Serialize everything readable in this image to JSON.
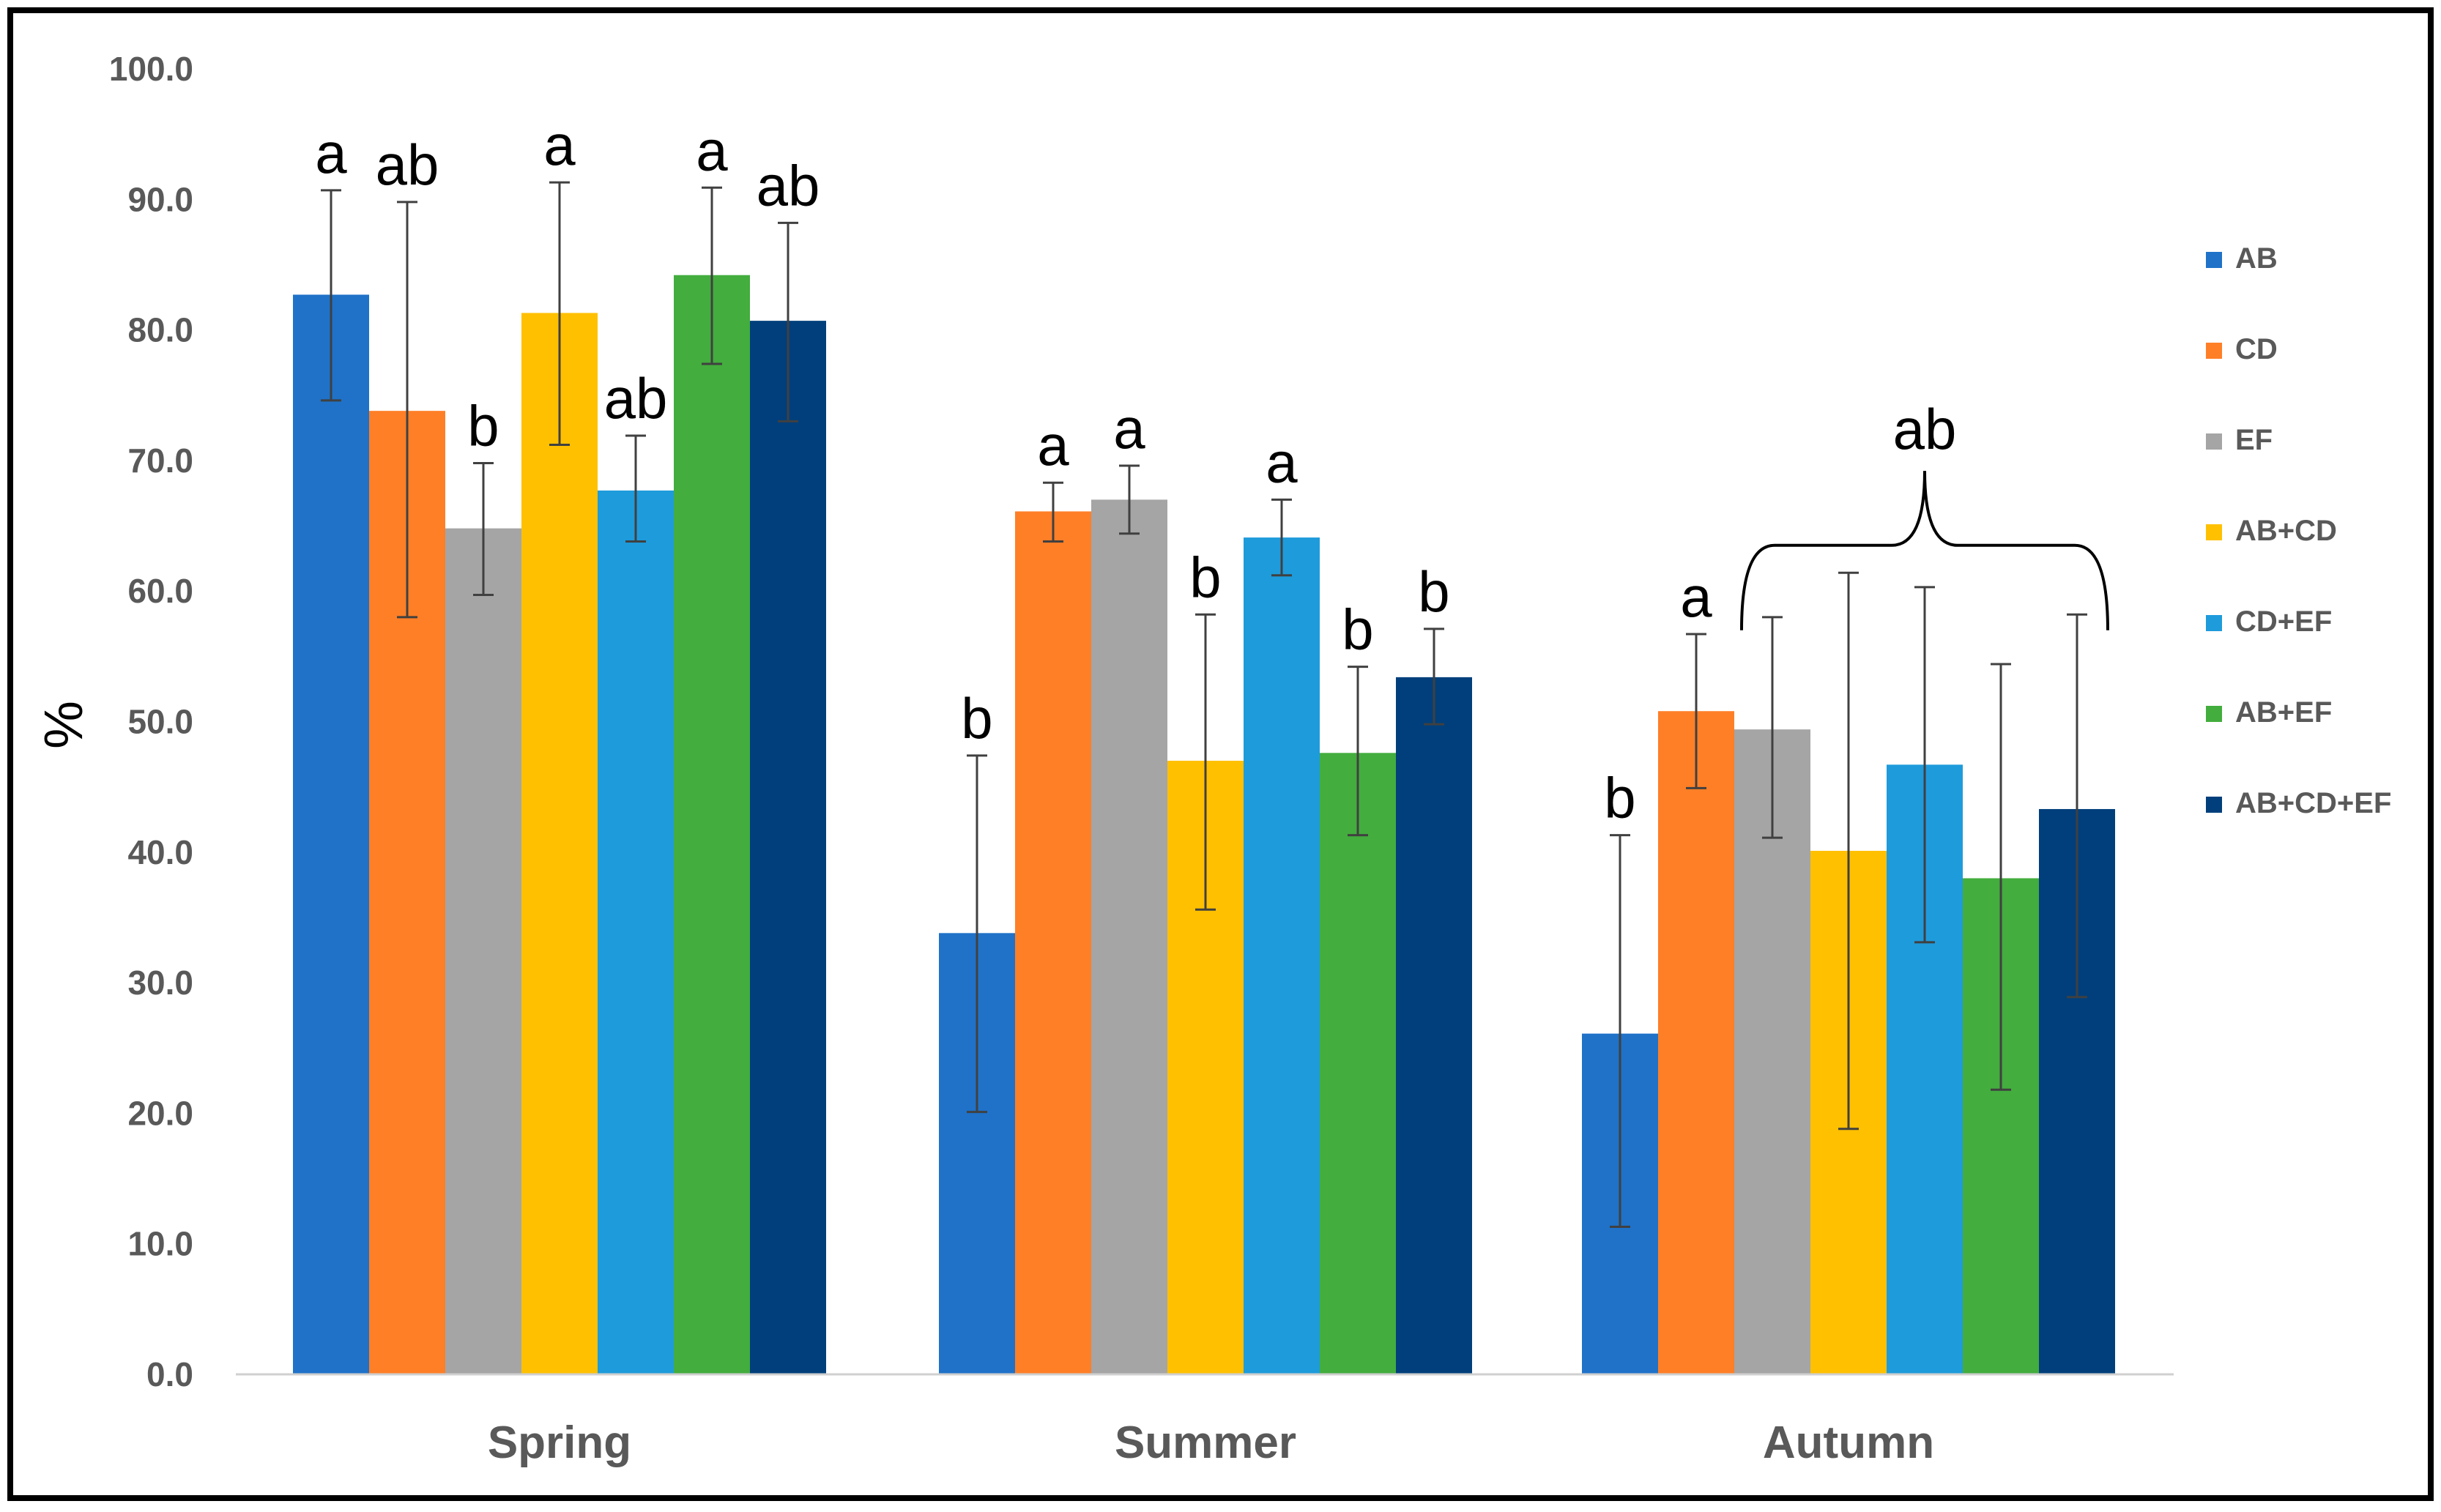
{
  "chart_data": {
    "type": "bar",
    "title": "",
    "xlabel": "",
    "ylabel": "%",
    "ylim": [
      0,
      100
    ],
    "yticks": [
      "0.0",
      "10.0",
      "20.0",
      "30.0",
      "40.0",
      "50.0",
      "60.0",
      "70.0",
      "80.0",
      "90.0",
      "100.0"
    ],
    "grid": false,
    "legend_position": "right",
    "categories": [
      "Spring",
      "Summer",
      "Autumn"
    ],
    "series": [
      {
        "name": "AB",
        "color": "#1F72C8",
        "values": [
          82.7,
          33.8,
          26.1
        ],
        "error_low": [
          74.6,
          20.1,
          11.3
        ],
        "error_high": [
          90.7,
          47.4,
          41.3
        ],
        "letters": [
          "a",
          "b",
          "b"
        ]
      },
      {
        "name": "CD",
        "color": "#FF7F27",
        "values": [
          73.8,
          66.1,
          50.8
        ],
        "error_low": [
          58.0,
          63.8,
          44.9
        ],
        "error_high": [
          89.8,
          68.3,
          56.7
        ],
        "letters": [
          "ab",
          "a",
          "a"
        ]
      },
      {
        "name": "EF",
        "color": "#A5A5A5",
        "values": [
          64.8,
          67.0,
          49.4
        ],
        "error_low": [
          59.7,
          64.4,
          41.1
        ],
        "error_high": [
          69.8,
          69.6,
          58.0
        ],
        "letters": [
          "b",
          "a",
          ""
        ]
      },
      {
        "name": "AB+CD",
        "color": "#FFC000",
        "values": [
          81.3,
          47.0,
          40.1
        ],
        "error_low": [
          71.2,
          35.6,
          18.8
        ],
        "error_high": [
          91.3,
          58.2,
          61.4
        ],
        "letters": [
          "a",
          "b",
          ""
        ]
      },
      {
        "name": "CD+EF",
        "color": "#1E9BDB",
        "values": [
          67.7,
          64.1,
          46.7
        ],
        "error_low": [
          63.8,
          61.2,
          33.1
        ],
        "error_high": [
          71.9,
          67.0,
          60.3
        ],
        "letters": [
          "ab",
          "a",
          ""
        ]
      },
      {
        "name": "AB+EF",
        "color": "#43AD3E",
        "values": [
          84.2,
          47.6,
          38.0
        ],
        "error_low": [
          77.4,
          41.3,
          21.8
        ],
        "error_high": [
          90.9,
          54.2,
          54.4
        ],
        "letters": [
          "a",
          "b",
          ""
        ]
      },
      {
        "name": "AB+CD+EF",
        "color": "#003F7B",
        "values": [
          80.7,
          53.4,
          43.3
        ],
        "error_low": [
          73.0,
          49.8,
          28.9
        ],
        "error_high": [
          88.2,
          57.1,
          58.2
        ],
        "letters": [
          "ab",
          "b",
          ""
        ]
      }
    ],
    "annotations": [
      {
        "text": "ab",
        "category": "Autumn",
        "type": "brace",
        "series_from": "EF",
        "series_to": "AB+CD+EF"
      }
    ]
  }
}
